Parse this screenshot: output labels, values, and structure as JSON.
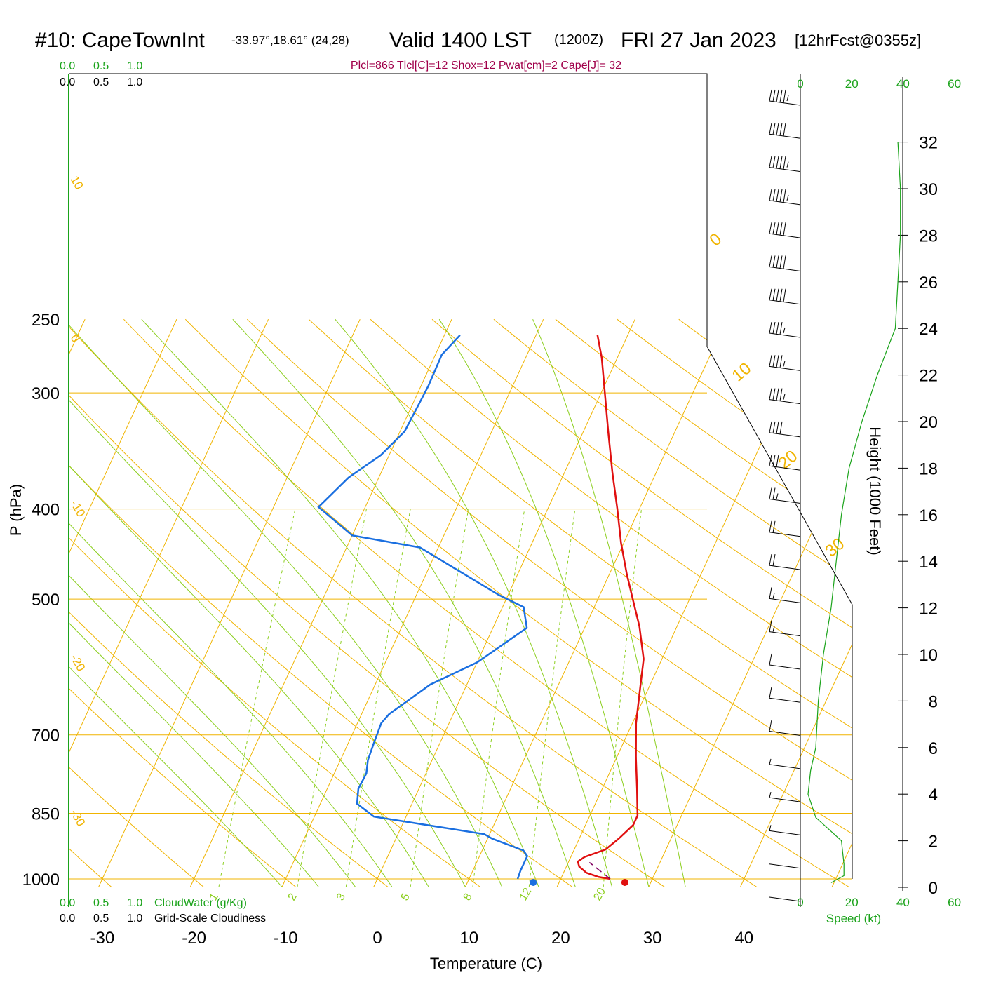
{
  "header": {
    "station": "#10: CapeTownInt",
    "coords": "-33.97°,18.61° (24,28)",
    "valid": "Valid 1400 LST",
    "utc": "(1200Z)",
    "date": "FRI 27 Jan 2023",
    "forecast": "[12hrFcst@0355z]",
    "indices": "Plcl=866 Tlcl[C]=12 Shox=12 Pwat[cm]=2 Cape[J]= 32"
  },
  "colors": {
    "temperature": "#e01010",
    "dewpoint": "#1a6fe0",
    "isotherm": "#f0b400",
    "dry_adiabat": "#f0b400",
    "moist_adiabat": "#8ccf1f",
    "mixing_ratio": "#8ccf1f",
    "wind_speed": "#1aa31a",
    "parcel": "#800060",
    "indices_text": "#a0004a"
  },
  "scale_top": {
    "green_labels": [
      "0.0",
      "0.5",
      "1.0"
    ],
    "black_labels": [
      "0.0",
      "0.5",
      "1.0"
    ]
  },
  "scale_bottom": {
    "green_labels": [
      "0.0",
      "0.5",
      "1.0"
    ],
    "green_title": "CloudWater (g/Kg)",
    "black_labels": [
      "0.0",
      "0.5",
      "1.0"
    ],
    "black_title": "Grid-Scale Cloudiness"
  },
  "chart_data": {
    "type": "line",
    "title": "#10: CapeTownInt Valid 1400 LST (1200Z) FRI 27 Jan 2023 [12hrFcst@0355z]",
    "xlabel": "Temperature (C)",
    "ylabel": "P (hPa)",
    "y2label": "Height (1000 Feet)",
    "y_scale": "log",
    "xlim": [
      -34,
      36
    ],
    "ylim": [
      1020,
      250
    ],
    "x_ticks": [
      "-30",
      "-20",
      "-10",
      "0",
      "10",
      "20",
      "30",
      "40"
    ],
    "p_ticks": [
      "250",
      "300",
      "400",
      "500",
      "700",
      "850",
      "1000"
    ],
    "height_ticks": [
      "0",
      "2",
      "4",
      "6",
      "8",
      "10",
      "12",
      "14",
      "16",
      "18",
      "20",
      "22",
      "24",
      "26",
      "28",
      "30",
      "32"
    ],
    "isotherm_labels": [
      "10",
      "0",
      "-10",
      "-20",
      "-30"
    ],
    "dry_adiabat_labels": [
      "0",
      "10",
      "20",
      "30"
    ],
    "mixing_ratio_labels": [
      "1",
      "2",
      "3",
      "5",
      "8",
      "12",
      "20"
    ],
    "series": [
      {
        "name": "temperature",
        "color": "#e01010",
        "points": [
          [
            25.4,
            1000
          ],
          [
            24.0,
            995
          ],
          [
            22.5,
            985
          ],
          [
            21.4,
            970
          ],
          [
            21.0,
            958
          ],
          [
            21.5,
            947
          ],
          [
            23.4,
            930
          ],
          [
            24.3,
            905
          ],
          [
            25.2,
            875
          ],
          [
            25.2,
            855
          ],
          [
            23.8,
            800
          ],
          [
            22.1,
            740
          ],
          [
            20.4,
            680
          ],
          [
            19.0,
            620
          ],
          [
            18.0,
            580
          ],
          [
            15.9,
            535
          ],
          [
            13.8,
            500
          ],
          [
            11.9,
            470
          ],
          [
            9.7,
            435
          ],
          [
            7.6,
            400
          ],
          [
            5.2,
            365
          ],
          [
            2.7,
            330
          ],
          [
            0.4,
            300
          ],
          [
            -1.7,
            275
          ],
          [
            -3.3,
            260
          ]
        ]
      },
      {
        "name": "dewpoint",
        "color": "#1a6fe0",
        "points": [
          [
            15.3,
            1000
          ],
          [
            15.2,
            980
          ],
          [
            15.2,
            945
          ],
          [
            14.5,
            932
          ],
          [
            10.5,
            905
          ],
          [
            9.4,
            895
          ],
          [
            -3.5,
            857
          ],
          [
            -6.0,
            830
          ],
          [
            -6.6,
            800
          ],
          [
            -6.5,
            770
          ],
          [
            -7.0,
            745
          ],
          [
            -7.2,
            715
          ],
          [
            -7.4,
            680
          ],
          [
            -7.0,
            665
          ],
          [
            -4.0,
            618
          ],
          [
            0.0,
            585
          ],
          [
            3.7,
            537
          ],
          [
            2.3,
            510
          ],
          [
            -1.0,
            495
          ],
          [
            -12.0,
            440
          ],
          [
            -20.0,
            427
          ],
          [
            -25.1,
            398
          ],
          [
            -23.3,
            370
          ],
          [
            -20.9,
            350
          ],
          [
            -19.5,
            330
          ],
          [
            -19.2,
            295
          ],
          [
            -19.3,
            273
          ],
          [
            -18.3,
            260
          ]
        ]
      },
      {
        "name": "parcel",
        "color": "#800060",
        "dash": true,
        "points": [
          [
            25.4,
            1000
          ],
          [
            22.3,
            960
          ]
        ]
      }
    ],
    "surface": {
      "temperature_c": 27,
      "dewpoint_c": 17
    },
    "wind_profile": {
      "speed_axis": [
        "0",
        "20",
        "40",
        "60"
      ],
      "speed_axis_bottom": [
        "0",
        "20",
        "40",
        "60"
      ],
      "speed_label": "Speed (kt)",
      "speed_kt_by_height_kft": [
        [
          0.2,
          12
        ],
        [
          0.5,
          17
        ],
        [
          1.0,
          17
        ],
        [
          2.0,
          16
        ],
        [
          3.0,
          6
        ],
        [
          4.0,
          3
        ],
        [
          5.0,
          4
        ],
        [
          6.0,
          6
        ],
        [
          8.0,
          7
        ],
        [
          10.0,
          9
        ],
        [
          12.0,
          12
        ],
        [
          14.0,
          14
        ],
        [
          16.0,
          16
        ],
        [
          18.0,
          19
        ],
        [
          20.0,
          24
        ],
        [
          22.0,
          30
        ],
        [
          24.0,
          37
        ],
        [
          26.0,
          38
        ],
        [
          28.0,
          39
        ],
        [
          30.0,
          39
        ],
        [
          32.0,
          38
        ]
      ]
    },
    "barbs_kt": [
      3,
      4,
      5,
      6,
      8,
      10,
      12,
      14,
      16,
      18,
      20,
      24,
      28,
      34,
      40,
      45,
      45,
      48,
      50,
      50,
      52,
      55,
      55,
      52,
      55
    ],
    "barb_direction_deg": 310
  }
}
